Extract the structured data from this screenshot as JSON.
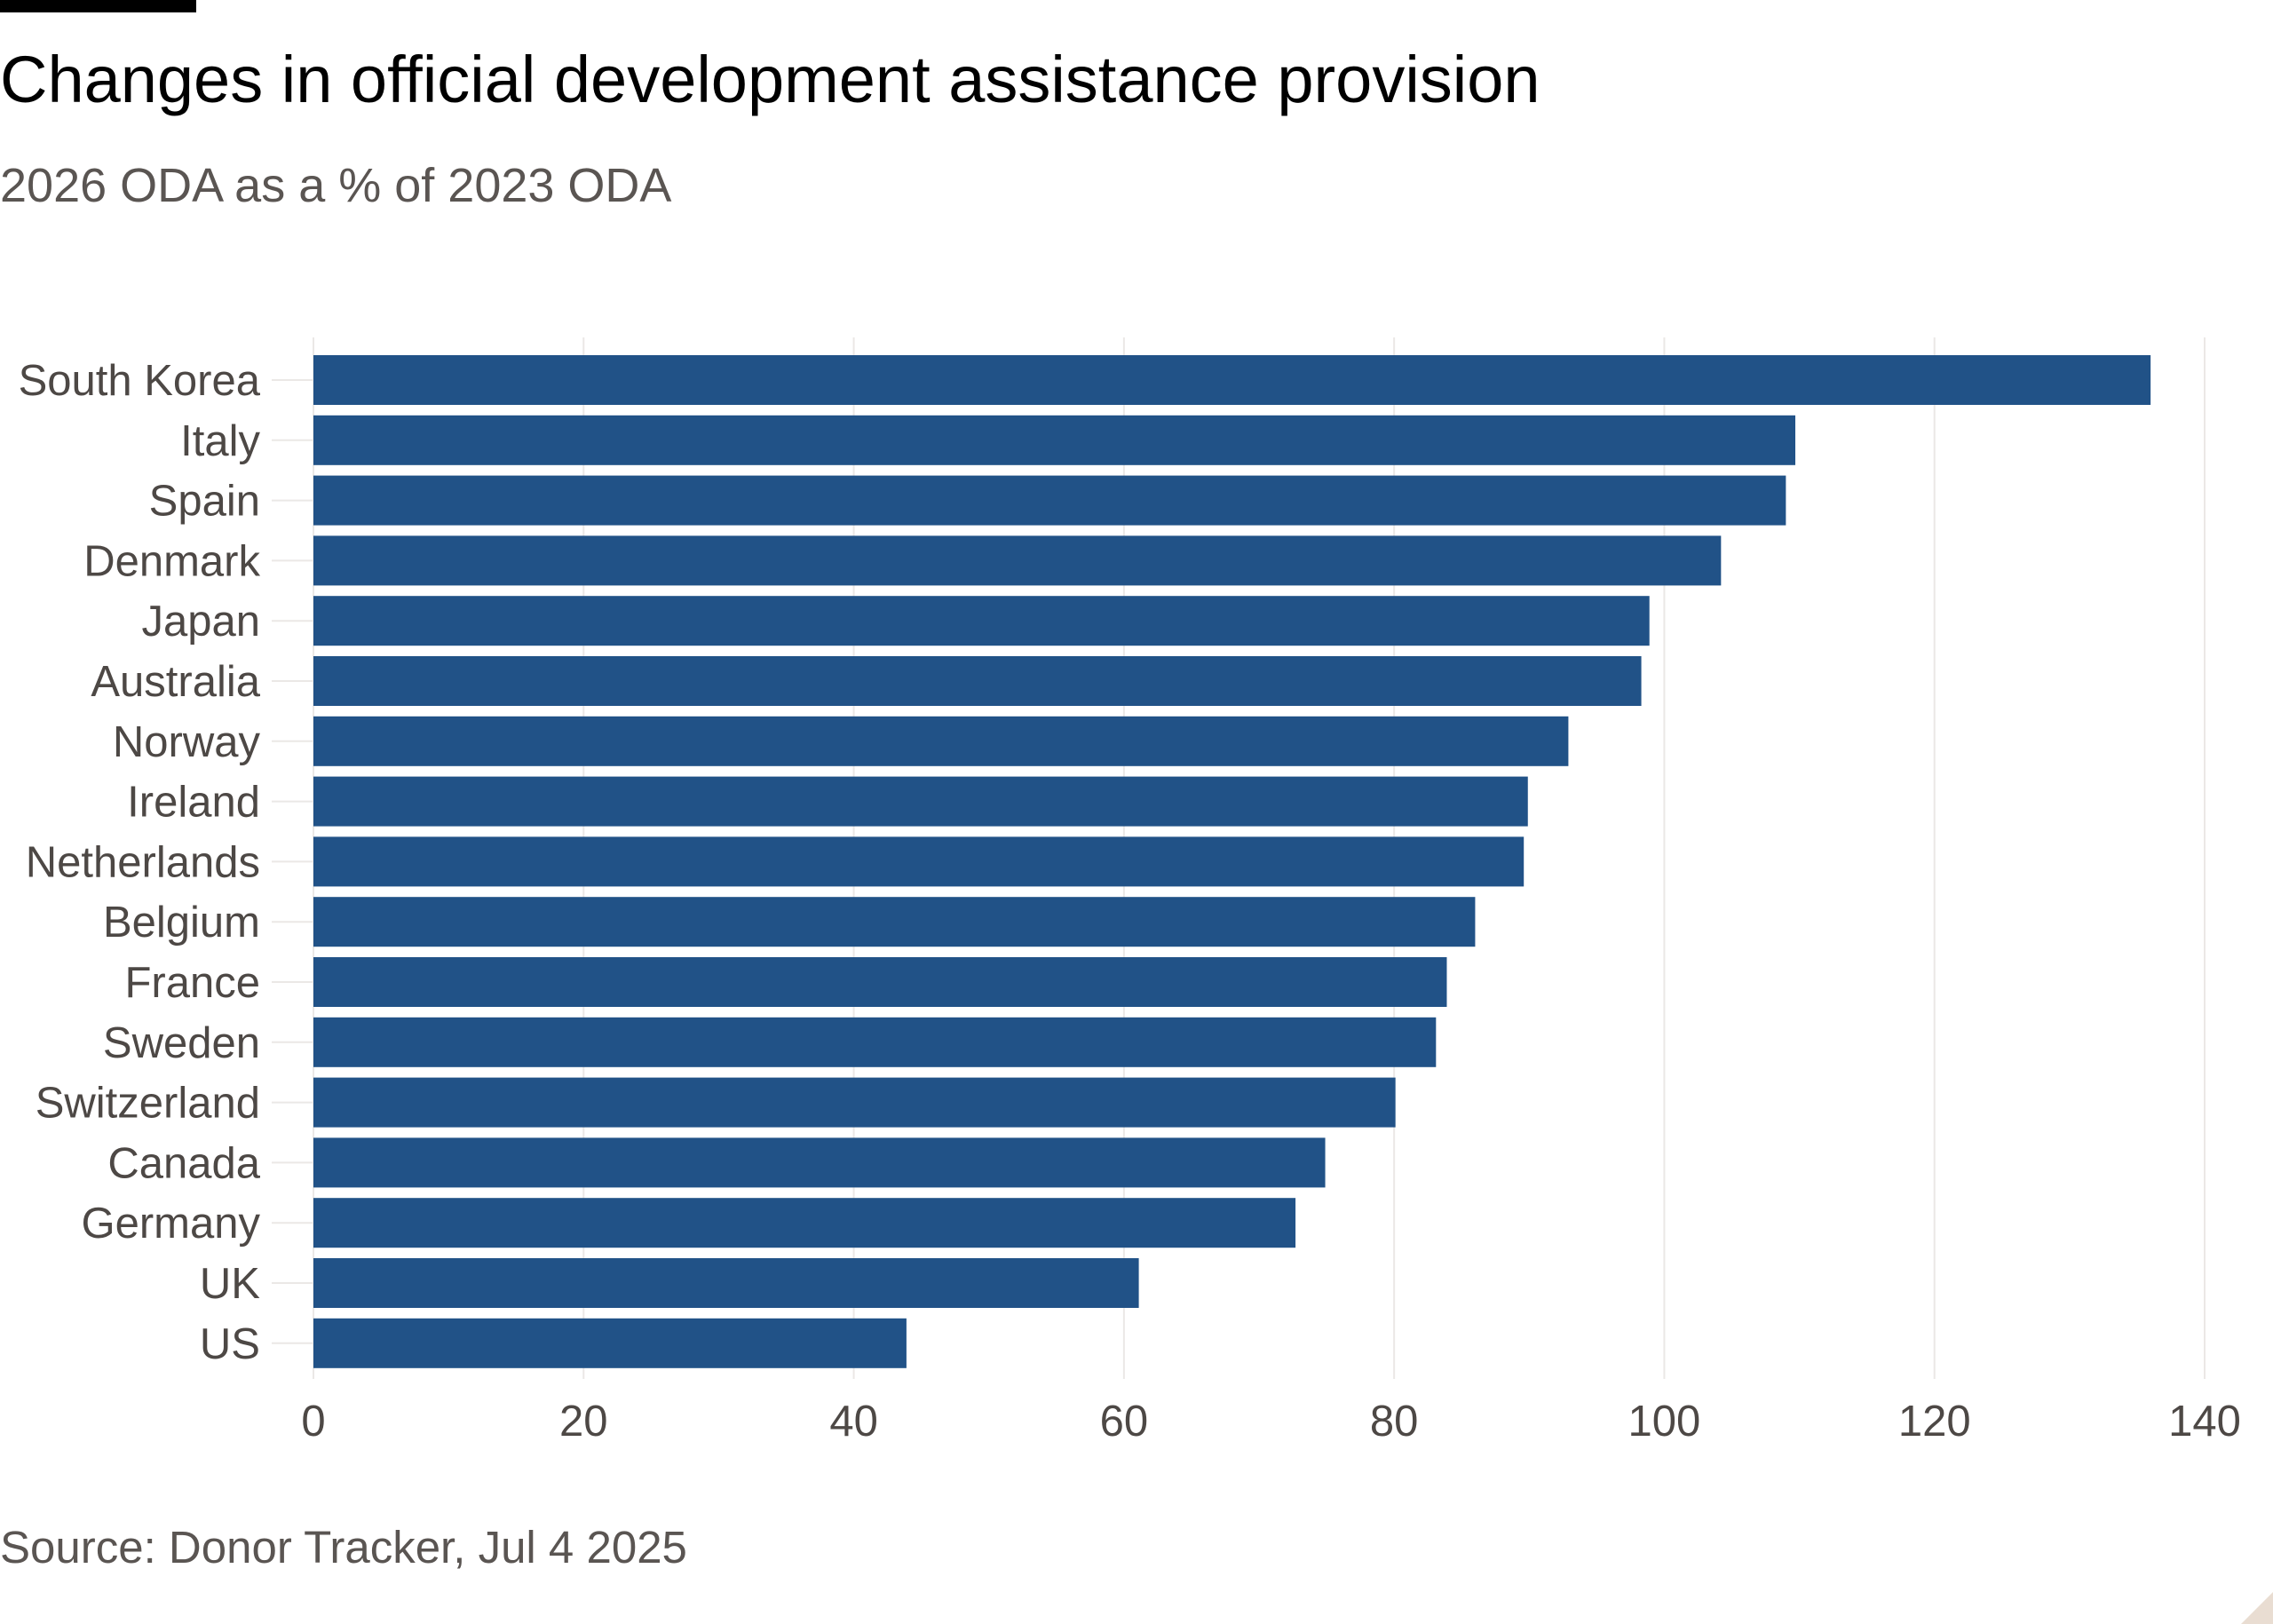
{
  "header": {
    "title": "Changes in official development assistance provision",
    "subtitle": "2026 ODA as a % of 2023 ODA"
  },
  "footer": {
    "source": "Source: Donor Tracker, Jul 4 2025"
  },
  "chart_data": {
    "type": "bar",
    "orientation": "horizontal",
    "categories": [
      "South Korea",
      "Italy",
      "Spain",
      "Denmark",
      "Japan",
      "Australia",
      "Norway",
      "Ireland",
      "Netherlands",
      "Belgium",
      "France",
      "Sweden",
      "Switzerland",
      "Canada",
      "Germany",
      "UK",
      "US"
    ],
    "values": [
      136,
      109.7,
      109,
      104.2,
      98.9,
      98.3,
      92.9,
      89.9,
      89.6,
      86,
      83.9,
      83.1,
      80.1,
      74.9,
      72.7,
      61.1,
      43.9
    ],
    "xlim": [
      0,
      140
    ],
    "xticks": [
      0,
      20,
      40,
      60,
      80,
      100,
      120,
      140
    ],
    "grid": true,
    "bar_color": "#215287",
    "grid_color": "#ebe8e6",
    "label_color": "#4d4845"
  }
}
